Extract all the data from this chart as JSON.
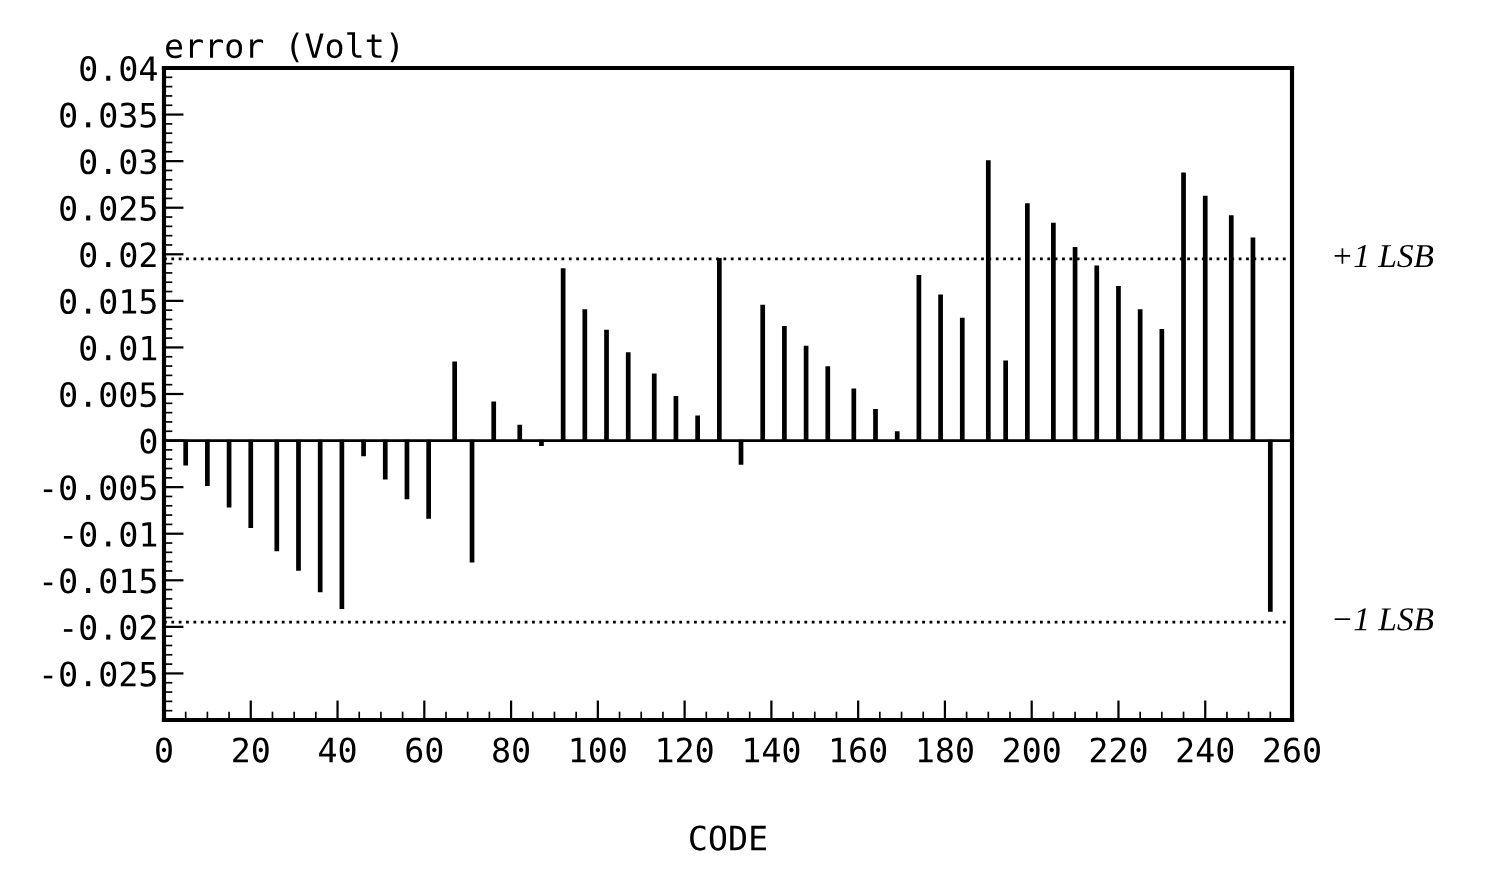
{
  "chart_data": {
    "type": "bar",
    "ylabel": "error (Volt)",
    "xlabel": "CODE",
    "x": [
      5,
      10,
      15,
      20,
      26,
      31,
      36,
      41,
      46,
      51,
      56,
      61,
      67,
      71,
      76,
      82,
      87,
      92,
      97,
      102,
      107,
      113,
      118,
      123,
      128,
      133,
      138,
      143,
      148,
      153,
      159,
      164,
      169,
      174,
      179,
      184,
      190,
      194,
      199,
      205,
      210,
      215,
      220,
      225,
      230,
      235,
      240,
      246,
      251,
      255
    ],
    "values": [
      -0.0026,
      -0.0048,
      -0.0071,
      -0.0093,
      -0.0118,
      -0.0139,
      -0.0162,
      -0.018,
      -0.0016,
      -0.0041,
      -0.0062,
      -0.0083,
      0.0084,
      -0.013,
      0.0041,
      0.0016,
      -0.0005,
      0.0184,
      0.014,
      0.0118,
      0.0094,
      0.0071,
      0.0047,
      0.0026,
      0.0195,
      -0.0025,
      0.0145,
      0.0122,
      0.0101,
      0.0079,
      0.0055,
      0.0033,
      0.0009,
      0.0177,
      0.0156,
      0.0131,
      0.03,
      0.0085,
      0.0254,
      0.0233,
      0.0207,
      0.0187,
      0.0165,
      0.014,
      0.0119,
      0.0287,
      0.0262,
      0.0241,
      0.0217,
      -0.0183
    ],
    "color": "#000000",
    "xlim": [
      0,
      260
    ],
    "xticks": [
      0,
      20,
      40,
      60,
      80,
      100,
      120,
      140,
      160,
      180,
      200,
      220,
      240,
      260
    ],
    "ylim": [
      -0.03,
      0.04
    ],
    "yticks": [
      -0.025,
      -0.02,
      -0.015,
      -0.01,
      -0.005,
      0,
      0.005,
      0.01,
      0.015,
      0.02,
      0.025,
      0.03,
      0.035,
      0.04
    ],
    "ref_lines": [
      {
        "axis": "y",
        "value": 0.0195,
        "label": "+1 LSB",
        "line_style": "dotted"
      },
      {
        "axis": "y",
        "value": -0.0195,
        "label": "−1 LSB",
        "line_style": "dotted"
      }
    ]
  }
}
